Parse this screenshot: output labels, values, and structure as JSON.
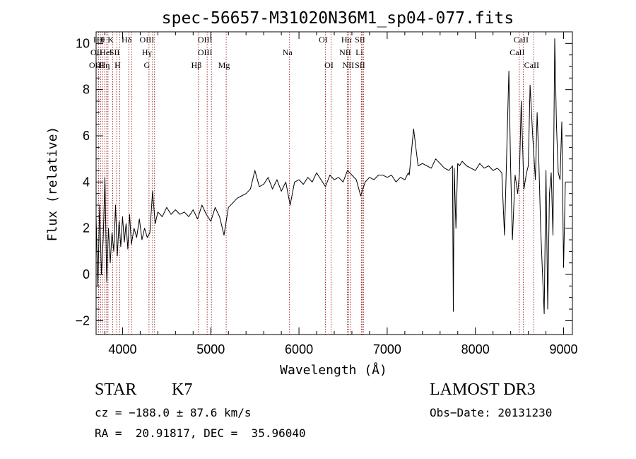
{
  "chart_data": {
    "type": "line",
    "title": "spec-56657-M31020N36M1_sp04-077.fits",
    "xlabel": "Wavelength (Å)",
    "ylabel": "Flux (relative)",
    "xlim": [
      3700,
      9100
    ],
    "ylim": [
      -2.6,
      10.5
    ],
    "xticks": [
      4000,
      5000,
      6000,
      7000,
      8000,
      9000
    ],
    "xtick_labels": [
      "4000",
      "5000",
      "6000",
      "7000",
      "8000",
      "9000"
    ],
    "yticks": [
      -2,
      0,
      2,
      4,
      6,
      8,
      10
    ],
    "ytick_labels": [
      "−2",
      "0",
      "2",
      "4",
      "6",
      "8",
      "10"
    ],
    "grid": false,
    "line_color": "#000000",
    "marker_color": "#8b0000",
    "series": [
      {
        "name": "flux",
        "x": [
          3700,
          3720,
          3740,
          3760,
          3780,
          3800,
          3820,
          3840,
          3860,
          3880,
          3900,
          3920,
          3940,
          3960,
          3980,
          4000,
          4020,
          4040,
          4060,
          4080,
          4100,
          4130,
          4160,
          4190,
          4220,
          4250,
          4280,
          4310,
          4340,
          4370,
          4400,
          4450,
          4500,
          4550,
          4600,
          4650,
          4700,
          4750,
          4800,
          4850,
          4900,
          4950,
          5000,
          5050,
          5100,
          5150,
          5200,
          5250,
          5300,
          5350,
          5400,
          5450,
          5500,
          5550,
          5600,
          5650,
          5700,
          5750,
          5800,
          5850,
          5900,
          5950,
          6000,
          6050,
          6100,
          6150,
          6200,
          6250,
          6300,
          6350,
          6400,
          6450,
          6500,
          6550,
          6600,
          6650,
          6700,
          6750,
          6800,
          6850,
          6900,
          6950,
          7000,
          7050,
          7100,
          7150,
          7200,
          7240,
          7250,
          7300,
          7350,
          7400,
          7450,
          7500,
          7550,
          7600,
          7650,
          7700,
          7740,
          7750,
          7760,
          7780,
          7800,
          7820,
          7850,
          7900,
          7950,
          8000,
          8050,
          8100,
          8150,
          8200,
          8250,
          8300,
          8330,
          8350,
          8380,
          8400,
          8420,
          8450,
          8480,
          8500,
          8520,
          8550,
          8580,
          8600,
          8620,
          8650,
          8680,
          8700,
          8720,
          8740,
          8760,
          8780,
          8800,
          8820,
          8840,
          8860,
          8880,
          8900,
          8920,
          8940,
          8960,
          8980,
          9000,
          9020
        ],
        "y": [
          2.5,
          -0.5,
          3.0,
          0.0,
          1.5,
          4.2,
          -0.3,
          2.0,
          0.5,
          1.8,
          1.0,
          3.0,
          0.8,
          2.3,
          1.2,
          2.5,
          1.4,
          2.2,
          1.1,
          2.6,
          1.3,
          2.0,
          1.6,
          2.4,
          1.5,
          2.0,
          1.6,
          1.8,
          3.6,
          2.2,
          2.7,
          2.5,
          2.9,
          2.6,
          2.8,
          2.6,
          2.7,
          2.5,
          2.8,
          2.4,
          3.0,
          2.6,
          2.3,
          2.9,
          2.5,
          1.7,
          2.9,
          3.1,
          3.3,
          3.4,
          3.5,
          3.7,
          4.5,
          3.8,
          3.9,
          4.2,
          3.7,
          4.1,
          3.6,
          4.0,
          3.0,
          4.0,
          4.1,
          3.9,
          4.2,
          4.0,
          4.4,
          4.1,
          3.8,
          4.3,
          4.1,
          4.2,
          4.0,
          4.5,
          4.3,
          4.1,
          3.4,
          4.0,
          4.2,
          4.1,
          4.3,
          4.3,
          4.2,
          4.3,
          4.0,
          4.2,
          4.1,
          4.4,
          4.3,
          6.3,
          4.7,
          4.8,
          4.7,
          4.6,
          5.0,
          4.8,
          4.6,
          4.5,
          4.7,
          -1.6,
          4.6,
          2.0,
          4.8,
          4.7,
          4.9,
          4.7,
          4.6,
          4.5,
          4.8,
          4.6,
          4.7,
          4.5,
          4.6,
          4.4,
          1.7,
          4.5,
          8.8,
          4.6,
          1.5,
          4.3,
          3.5,
          4.4,
          7.5,
          3.7,
          4.4,
          4.7,
          8.2,
          6.0,
          4.1,
          7.0,
          4.8,
          2.0,
          0.1,
          -1.7,
          4.5,
          -1.5,
          3.5,
          4.4,
          1.7,
          10.2,
          6.4,
          4.4,
          4.1,
          6.6,
          0.3,
          4.0
        ]
      }
    ],
    "markers": [
      {
        "x": 3727,
        "rows": [
          {
            "row": 1,
            "text": "OII"
          },
          {
            "row": 2,
            "text": "OIII"
          }
        ]
      },
      {
        "x": 3750,
        "rows": [
          {
            "row": 0,
            "text": "Hθ"
          }
        ]
      },
      {
        "x": 3771,
        "rows": []
      },
      {
        "x": 3798,
        "rows": [
          {
            "row": 0,
            "text": "θ"
          }
        ]
      },
      {
        "x": 3820,
        "rows": [
          {
            "row": 2,
            "text": "Hη"
          }
        ]
      },
      {
        "x": 3835,
        "rows": [
          {
            "row": 1,
            "text": "Hel"
          }
        ]
      },
      {
        "x": 3889,
        "rows": [
          {
            "row": 0,
            "text": "K"
          }
        ]
      },
      {
        "x": 3933,
        "rows": [
          {
            "row": 1,
            "text": "SII"
          }
        ]
      },
      {
        "x": 3968,
        "rows": [
          {
            "row": 2,
            "text": "H"
          }
        ]
      },
      {
        "x": 4070,
        "rows": [
          {
            "row": 0,
            "text": "Hδ"
          }
        ]
      },
      {
        "x": 4102,
        "rows": []
      },
      {
        "x": 4300,
        "rows": [
          {
            "row": 0,
            "text": "OIII"
          },
          {
            "row": 1,
            "text": "Hγ"
          },
          {
            "row": 2,
            "text": "G"
          }
        ]
      },
      {
        "x": 4340,
        "rows": []
      },
      {
        "x": 4363,
        "rows": []
      },
      {
        "x": 4861,
        "rows": [
          {
            "row": 2,
            "text": "Hβ"
          }
        ]
      },
      {
        "x": 4959,
        "rows": [
          {
            "row": 0,
            "text": "OIII"
          },
          {
            "row": 1,
            "text": "OIII"
          }
        ]
      },
      {
        "x": 5007,
        "rows": []
      },
      {
        "x": 5175,
        "rows": [
          {
            "row": 2,
            "text": "Mg"
          }
        ]
      },
      {
        "x": 5893,
        "rows": [
          {
            "row": 1,
            "text": "Na"
          }
        ]
      },
      {
        "x": 6300,
        "rows": [
          {
            "row": 0,
            "text": "OI"
          }
        ]
      },
      {
        "x": 6364,
        "rows": [
          {
            "row": 2,
            "text": "OI"
          }
        ]
      },
      {
        "x": 6548,
        "rows": [
          {
            "row": 1,
            "text": "NII"
          }
        ]
      },
      {
        "x": 6563,
        "rows": [
          {
            "row": 0,
            "text": "Hα"
          }
        ]
      },
      {
        "x": 6583,
        "rows": [
          {
            "row": 2,
            "text": "NII"
          }
        ]
      },
      {
        "x": 6708,
        "rows": [
          {
            "row": 1,
            "text": "Li"
          }
        ]
      },
      {
        "x": 6716,
        "rows": [
          {
            "row": 0,
            "text": "SII"
          },
          {
            "row": 2,
            "text": "SII"
          }
        ]
      },
      {
        "x": 6731,
        "rows": []
      },
      {
        "x": 8498,
        "rows": [
          {
            "row": 1,
            "text": "CaII"
          }
        ]
      },
      {
        "x": 8542,
        "rows": [
          {
            "row": 0,
            "text": "CaII"
          }
        ]
      },
      {
        "x": 8662,
        "rows": [
          {
            "row": 2,
            "text": "CaII"
          }
        ]
      }
    ]
  },
  "info": {
    "object_class": "STAR",
    "subclass": "K7",
    "survey": "LAMOST DR3",
    "redshift_line": "cz = −188.0 ± 87.6 km/s",
    "obs_date_line": "Obs−Date: 20131230",
    "coords_line": "RA =  20.91817, DEC =  35.96040"
  }
}
